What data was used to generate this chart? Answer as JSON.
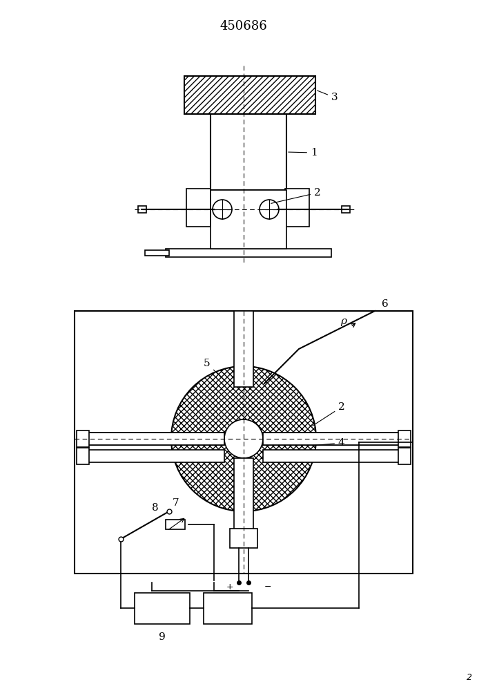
{
  "title": "450686",
  "bg_color": "#ffffff",
  "line_color": "#000000",
  "hatch_color": "#000000",
  "fig_width": 7.07,
  "fig_height": 10.0,
  "dpi": 100
}
